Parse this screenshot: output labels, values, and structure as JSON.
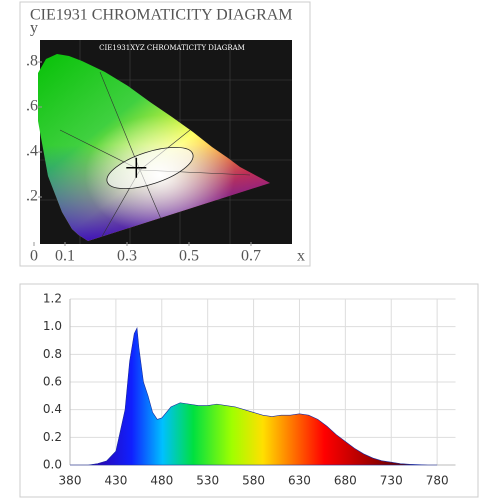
{
  "chart_data": [
    {
      "type": "chromaticity",
      "title": "CIE1931 CHROMATICITY DIAGRAM",
      "subtitle": "CIE1931XYZ CHROMATICITY DIAGRAM",
      "x_label": "x",
      "y_label": "y",
      "xlim": [
        0,
        0.85
      ],
      "ylim": [
        0,
        0.9
      ],
      "xticks": [
        0,
        0.1,
        0.3,
        0.5,
        0.7
      ],
      "yticks": [
        {
          "value": 0.8,
          "label": ".8"
        },
        {
          "value": 0.6,
          "label": ".6"
        },
        {
          "value": 0.4,
          "label": ".4"
        },
        {
          "value": 0.2,
          "label": ".2"
        }
      ],
      "point": {
        "x": 0.33,
        "y": 0.33
      }
    },
    {
      "type": "area",
      "grid": true,
      "xlim": [
        380,
        800
      ],
      "ylim": [
        0,
        1.2
      ],
      "xticks": [
        380,
        430,
        480,
        530,
        580,
        630,
        680,
        730,
        780
      ],
      "yticks": [
        {
          "value": 0,
          "label": "0.0"
        },
        0.2,
        0.4,
        0.6,
        0.8,
        {
          "value": 1,
          "label": "1.0"
        },
        1.2
      ],
      "x": [
        380,
        390,
        400,
        410,
        420,
        430,
        440,
        445,
        450,
        453,
        455,
        460,
        465,
        470,
        475,
        480,
        490,
        500,
        510,
        520,
        530,
        540,
        550,
        560,
        570,
        580,
        590,
        600,
        610,
        620,
        630,
        640,
        650,
        660,
        670,
        680,
        690,
        700,
        710,
        720,
        730,
        740,
        750,
        760,
        770,
        780
      ],
      "values": [
        0,
        0,
        0,
        0.01,
        0.03,
        0.1,
        0.4,
        0.75,
        0.95,
        0.99,
        0.85,
        0.6,
        0.5,
        0.38,
        0.33,
        0.34,
        0.42,
        0.45,
        0.44,
        0.43,
        0.43,
        0.44,
        0.43,
        0.42,
        0.4,
        0.38,
        0.36,
        0.35,
        0.36,
        0.36,
        0.37,
        0.36,
        0.33,
        0.28,
        0.22,
        0.17,
        0.12,
        0.08,
        0.05,
        0.03,
        0.02,
        0.01,
        0.005,
        0.002,
        0,
        0
      ]
    }
  ]
}
